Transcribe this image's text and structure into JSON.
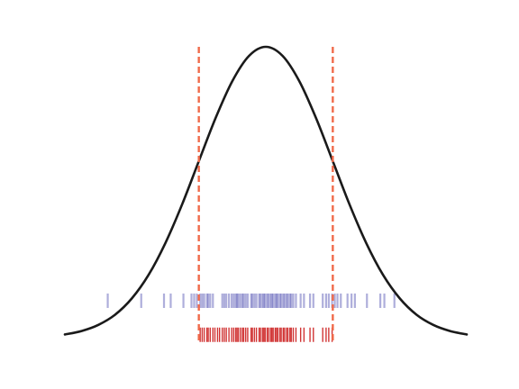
{
  "chart_data": {
    "type": "line",
    "title": "",
    "xlabel": "",
    "ylabel": "",
    "axes_visible": false,
    "grid": false,
    "xlim": [
      -3.0,
      3.0
    ],
    "ylim": [
      0.0,
      1.0
    ],
    "curve": {
      "name": "",
      "color": "#1a1a1a",
      "x": [
        -3.0,
        -2.75,
        -2.5,
        -2.25,
        -2.0,
        -1.75,
        -1.5,
        -1.25,
        -1.0,
        -0.75,
        -0.5,
        -0.25,
        0.0,
        0.25,
        0.5,
        0.75,
        1.0,
        1.25,
        1.5,
        1.75,
        2.0,
        2.25,
        2.5,
        2.75,
        3.0
      ],
      "y": [
        0.011,
        0.023,
        0.044,
        0.079,
        0.135,
        0.216,
        0.325,
        0.458,
        0.607,
        0.755,
        0.882,
        0.969,
        1.0,
        0.969,
        0.882,
        0.755,
        0.607,
        0.458,
        0.325,
        0.216,
        0.135,
        0.079,
        0.044,
        0.023,
        0.011
      ]
    },
    "bounds": {
      "color": "#f06a4a",
      "values": [
        -1.0,
        1.0
      ]
    },
    "rug_all": {
      "color": "#2a2aa0",
      "y_level": 0.127,
      "x": [
        -2.36,
        -1.86,
        -1.52,
        -1.42,
        -1.23,
        -1.11,
        -1.07,
        -1.03,
        -0.98,
        -0.95,
        -0.92,
        -0.88,
        -0.86,
        -0.83,
        -0.79,
        -0.65,
        -0.62,
        -0.59,
        -0.55,
        -0.51,
        -0.48,
        -0.45,
        -0.43,
        -0.41,
        -0.38,
        -0.35,
        -0.33,
        -0.3,
        -0.27,
        -0.22,
        -0.2,
        -0.17,
        -0.14,
        -0.1,
        -0.08,
        -0.05,
        -0.03,
        -0.01,
        0.02,
        0.04,
        0.07,
        0.09,
        0.11,
        0.14,
        0.16,
        0.18,
        0.21,
        0.23,
        0.26,
        0.28,
        0.31,
        0.33,
        0.36,
        0.38,
        0.41,
        0.45,
        0.52,
        0.57,
        0.66,
        0.71,
        0.85,
        0.9,
        0.94,
        0.99,
        1.03,
        1.07,
        1.12,
        1.22,
        1.28,
        1.33,
        1.51,
        1.71,
        1.77,
        1.92
      ]
    },
    "rug_within": {
      "color": "#cc1f1f",
      "y_level": 0.01,
      "x": [
        -0.98,
        -0.95,
        -0.92,
        -0.88,
        -0.86,
        -0.83,
        -0.79,
        -0.76,
        -0.72,
        -0.69,
        -0.65,
        -0.62,
        -0.59,
        -0.55,
        -0.51,
        -0.48,
        -0.45,
        -0.43,
        -0.41,
        -0.38,
        -0.35,
        -0.33,
        -0.3,
        -0.27,
        -0.22,
        -0.2,
        -0.17,
        -0.14,
        -0.1,
        -0.08,
        -0.05,
        -0.03,
        -0.01,
        0.02,
        0.04,
        0.07,
        0.09,
        0.11,
        0.14,
        0.16,
        0.18,
        0.21,
        0.23,
        0.26,
        0.28,
        0.31,
        0.33,
        0.36,
        0.38,
        0.41,
        0.45,
        0.52,
        0.57,
        0.66,
        0.71,
        0.85,
        0.9,
        0.94,
        0.99
      ]
    }
  }
}
